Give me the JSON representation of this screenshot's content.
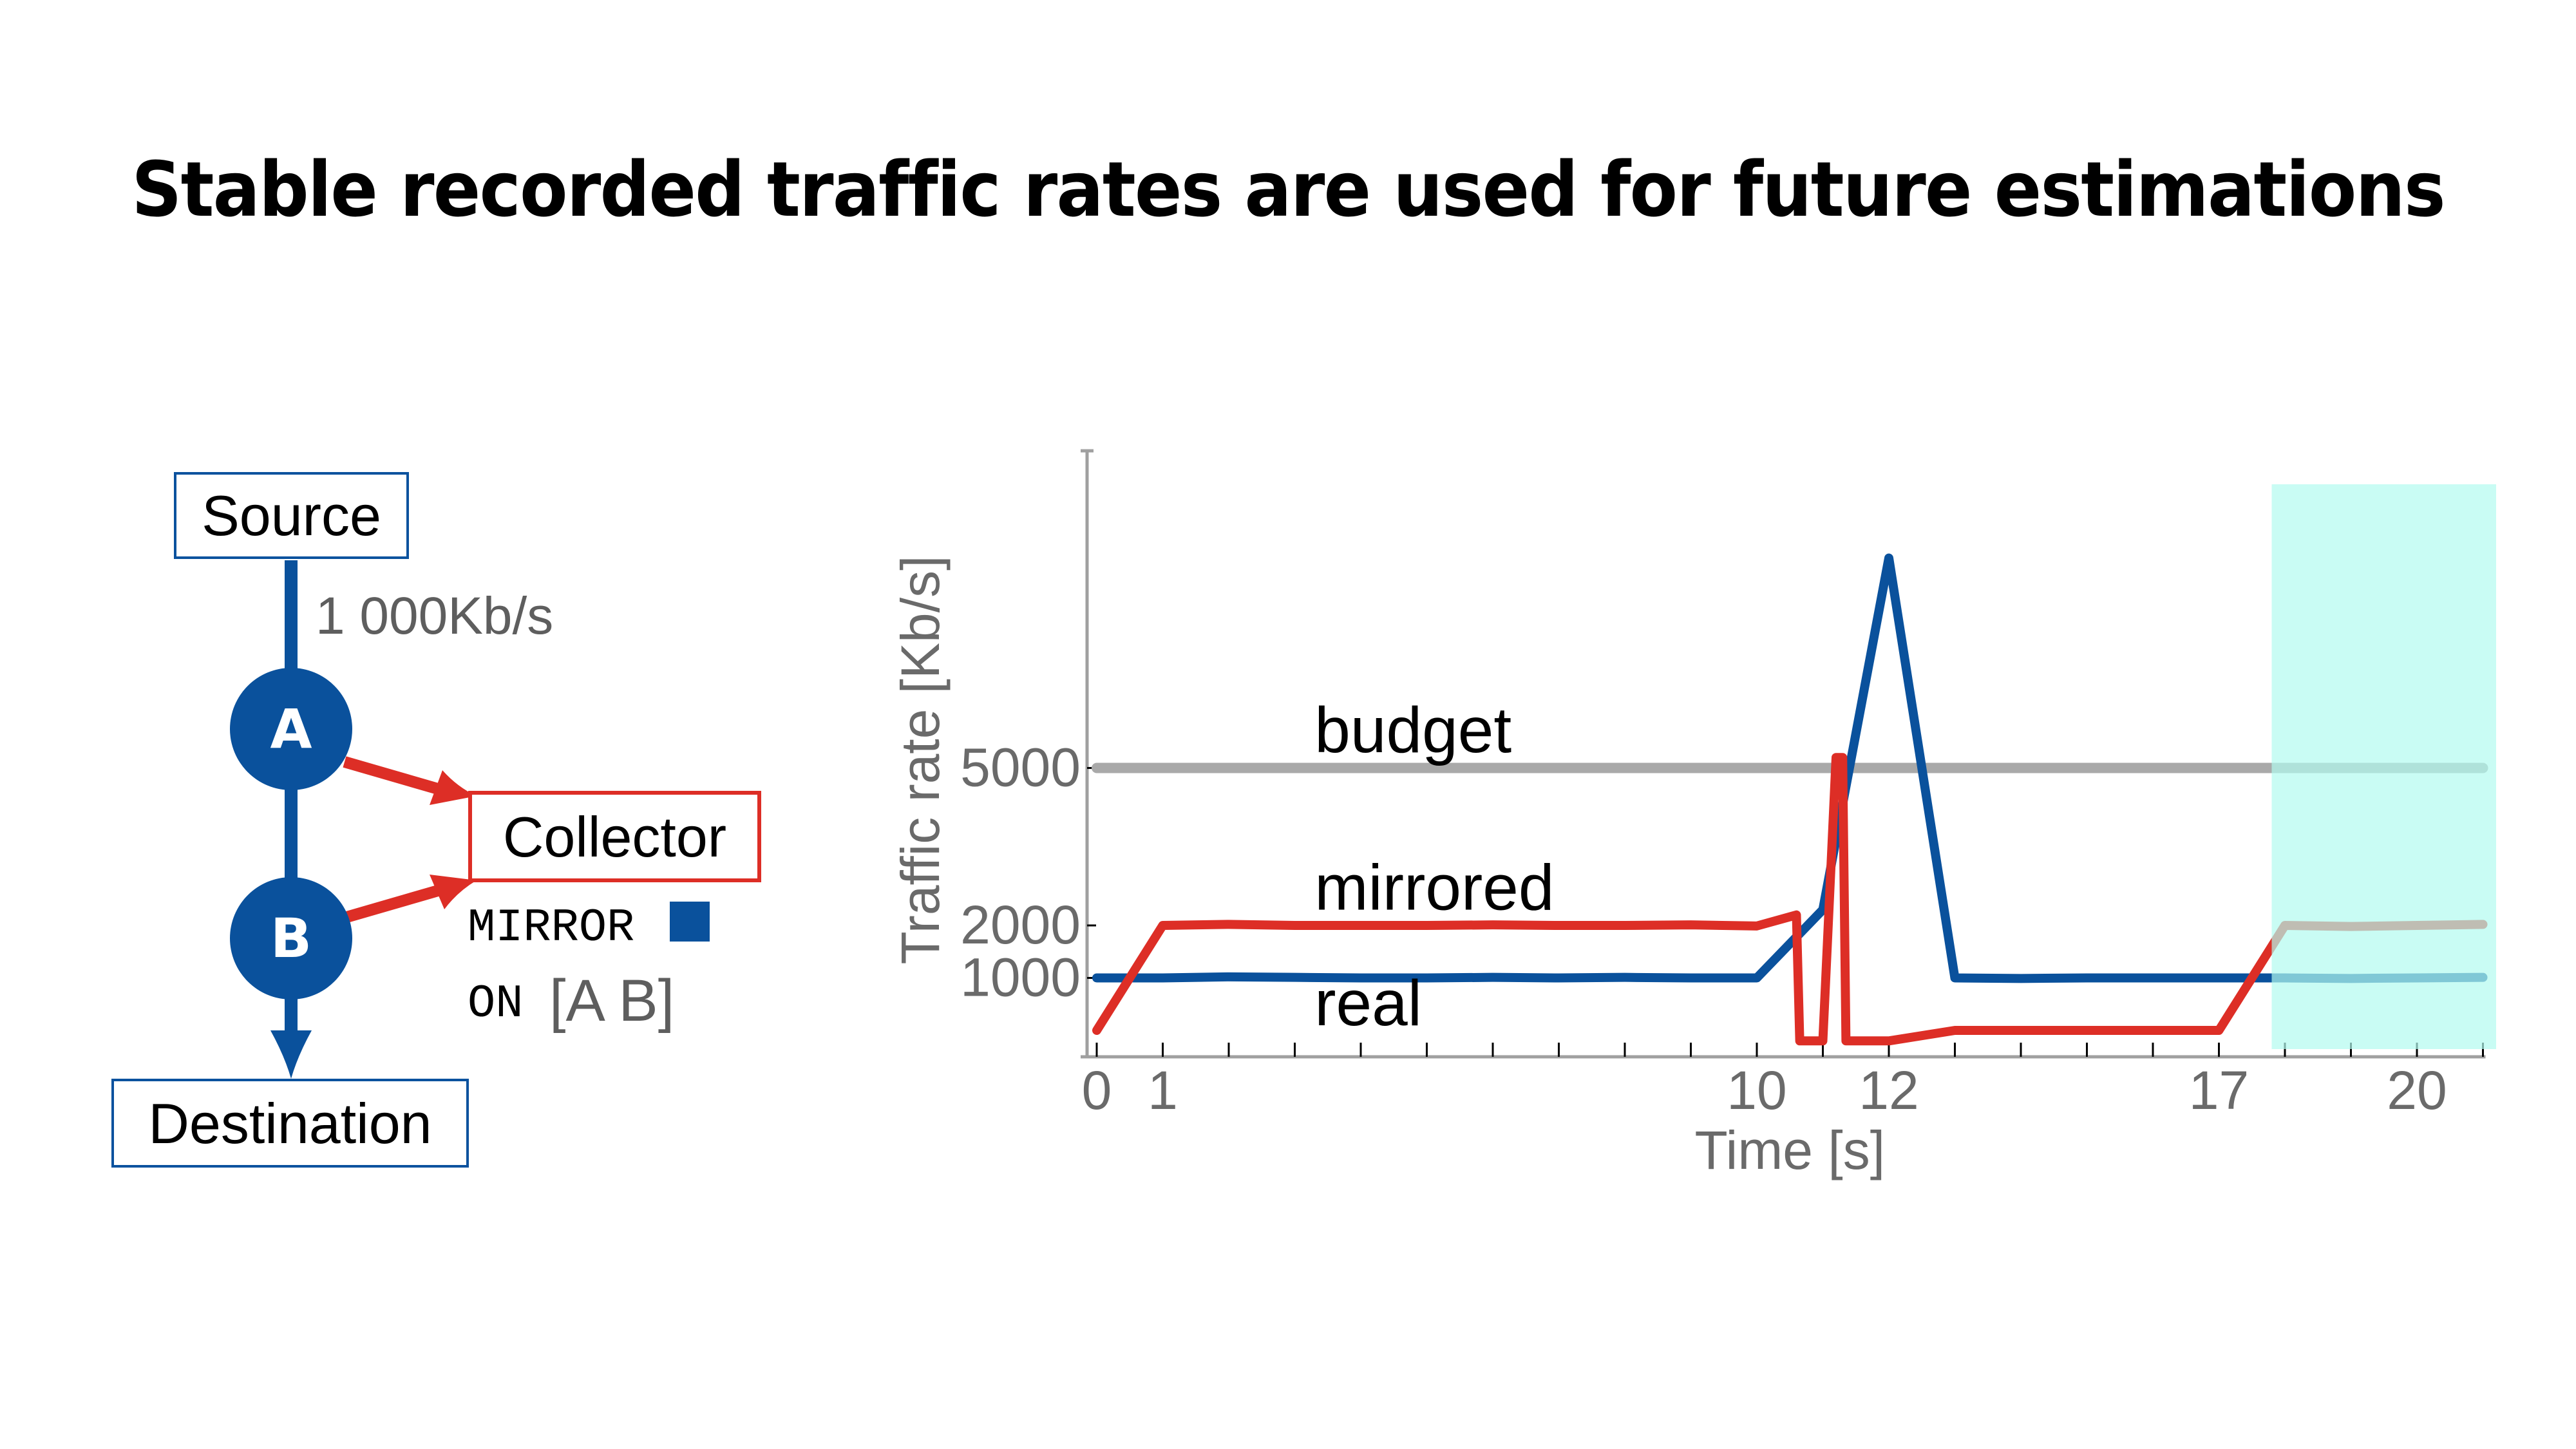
{
  "title": "Stable recorded traffic rates are used for future estimations",
  "diagram": {
    "source_label": "Source",
    "rate_label": "1 000Kb/s",
    "node_a": "A",
    "node_b": "B",
    "collector_label": "Collector",
    "destination_label": "Destination",
    "query_line1_keyword": "MIRROR",
    "query_line2_keyword": "ON",
    "query_line2_args": "[A B]",
    "colors": {
      "blue": "#0a519c",
      "red": "#dd2e26",
      "mirror_square": "#0a519c"
    }
  },
  "chart_data": {
    "type": "line",
    "title": "",
    "xlabel": "Time [s]",
    "ylabel": "Traffic rate [Kb/s]",
    "xlim": [
      0,
      21
    ],
    "ylim": [
      -500,
      11000
    ],
    "x_ticks": [
      0,
      1,
      10,
      12,
      17,
      20
    ],
    "x_minor_ticks": [
      2,
      3,
      4,
      5,
      6,
      7,
      8,
      9,
      11,
      13,
      14,
      15,
      16,
      18,
      19,
      21
    ],
    "y_ticks": [
      1000,
      2000,
      5000
    ],
    "grid": false,
    "legend": "inline-labels",
    "highlight_region": {
      "x_start": 17.8,
      "x_end": 21.2,
      "color": "#b2fbf0",
      "meaning": "estimation window"
    },
    "series": [
      {
        "name": "budget",
        "color": "#a9a9a9",
        "x": [
          0,
          21
        ],
        "y": [
          5000,
          5000
        ]
      },
      {
        "name": "real",
        "color": "#0a519c",
        "x": [
          0,
          1,
          2,
          3,
          4,
          5,
          6,
          7,
          8,
          9,
          10,
          11,
          12,
          13,
          14,
          15,
          16,
          17,
          18,
          19,
          20,
          21
        ],
        "y": [
          1000,
          1000,
          1020,
          1010,
          1000,
          1000,
          1010,
          1000,
          1010,
          1000,
          1000,
          2300,
          9000,
          1000,
          990,
          1000,
          1000,
          1000,
          1000,
          990,
          1000,
          1010
        ]
      },
      {
        "name": "mirrored",
        "color": "#dd2e26",
        "x": [
          0,
          1,
          2,
          3,
          4,
          5,
          6,
          7,
          8,
          9,
          10,
          10.6,
          10.65,
          11,
          11.2,
          11.3,
          11.35,
          12,
          13,
          14,
          15,
          16,
          17,
          18,
          19,
          20,
          21
        ],
        "y": [
          0,
          2000,
          2020,
          2000,
          2000,
          2000,
          2010,
          2000,
          2000,
          2010,
          1990,
          2200,
          -200,
          -200,
          5200,
          5200,
          -200,
          -200,
          0,
          0,
          0,
          0,
          0,
          2000,
          1980,
          2000,
          2020
        ]
      }
    ],
    "annotations": [
      {
        "text": "budget",
        "x": 3.3,
        "y": 5300
      },
      {
        "text": "mirrored",
        "x": 3.3,
        "y": 2300
      },
      {
        "text": "real",
        "x": 3.3,
        "y": 100
      }
    ]
  }
}
